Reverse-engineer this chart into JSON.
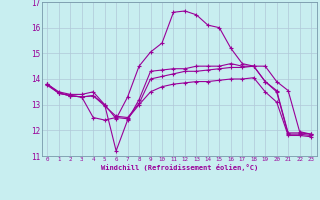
{
  "xlabel": "Windchill (Refroidissement éolien,°C)",
  "ylabel": "",
  "background_color": "#c8eef0",
  "grid_color": "#b0c8d8",
  "line_color": "#990099",
  "xlim": [
    -0.5,
    23.5
  ],
  "ylim": [
    11,
    17
  ],
  "yticks": [
    11,
    12,
    13,
    14,
    15,
    16,
    17
  ],
  "xticks": [
    0,
    1,
    2,
    3,
    4,
    5,
    6,
    7,
    8,
    9,
    10,
    11,
    12,
    13,
    14,
    15,
    16,
    17,
    18,
    19,
    20,
    21,
    22,
    23
  ],
  "curves": [
    {
      "x": [
        0,
        1,
        2,
        3,
        4,
        5,
        6,
        7,
        8,
        9,
        10,
        11,
        12,
        13,
        14,
        15,
        16,
        17,
        18,
        19,
        20,
        21,
        22,
        23
      ],
      "y": [
        13.8,
        13.5,
        13.4,
        13.4,
        13.5,
        13.0,
        11.2,
        12.4,
        13.2,
        14.3,
        14.35,
        14.4,
        14.4,
        14.5,
        14.5,
        14.5,
        14.6,
        14.5,
        14.5,
        13.9,
        13.55,
        11.9,
        11.9,
        11.85
      ]
    },
    {
      "x": [
        0,
        1,
        2,
        3,
        4,
        5,
        6,
        7,
        8,
        9,
        10,
        11,
        12,
        13,
        14,
        15,
        16,
        17,
        18,
        19,
        20,
        21,
        22,
        23
      ],
      "y": [
        13.75,
        13.45,
        13.35,
        13.3,
        13.35,
        13.0,
        12.45,
        13.3,
        14.5,
        15.05,
        15.4,
        16.6,
        16.65,
        16.5,
        16.1,
        16.0,
        15.2,
        14.6,
        14.5,
        14.5,
        13.9,
        13.55,
        11.95,
        11.85
      ]
    },
    {
      "x": [
        0,
        1,
        2,
        3,
        4,
        5,
        6,
        7,
        8,
        9,
        10,
        11,
        12,
        13,
        14,
        15,
        16,
        17,
        18,
        19,
        20,
        21,
        22,
        23
      ],
      "y": [
        13.8,
        13.45,
        13.35,
        13.3,
        13.35,
        12.95,
        12.55,
        12.5,
        13.05,
        14.0,
        14.1,
        14.2,
        14.3,
        14.3,
        14.35,
        14.4,
        14.45,
        14.45,
        14.5,
        13.9,
        13.5,
        11.85,
        11.85,
        11.8
      ]
    },
    {
      "x": [
        0,
        1,
        2,
        3,
        4,
        5,
        6,
        7,
        8,
        9,
        10,
        11,
        12,
        13,
        14,
        15,
        16,
        17,
        18,
        19,
        20,
        21,
        22,
        23
      ],
      "y": [
        13.8,
        13.45,
        13.35,
        13.3,
        12.5,
        12.4,
        12.5,
        12.45,
        13.0,
        13.5,
        13.7,
        13.8,
        13.85,
        13.9,
        13.9,
        13.95,
        14.0,
        14.0,
        14.05,
        13.5,
        13.1,
        11.8,
        11.8,
        11.75
      ]
    }
  ]
}
